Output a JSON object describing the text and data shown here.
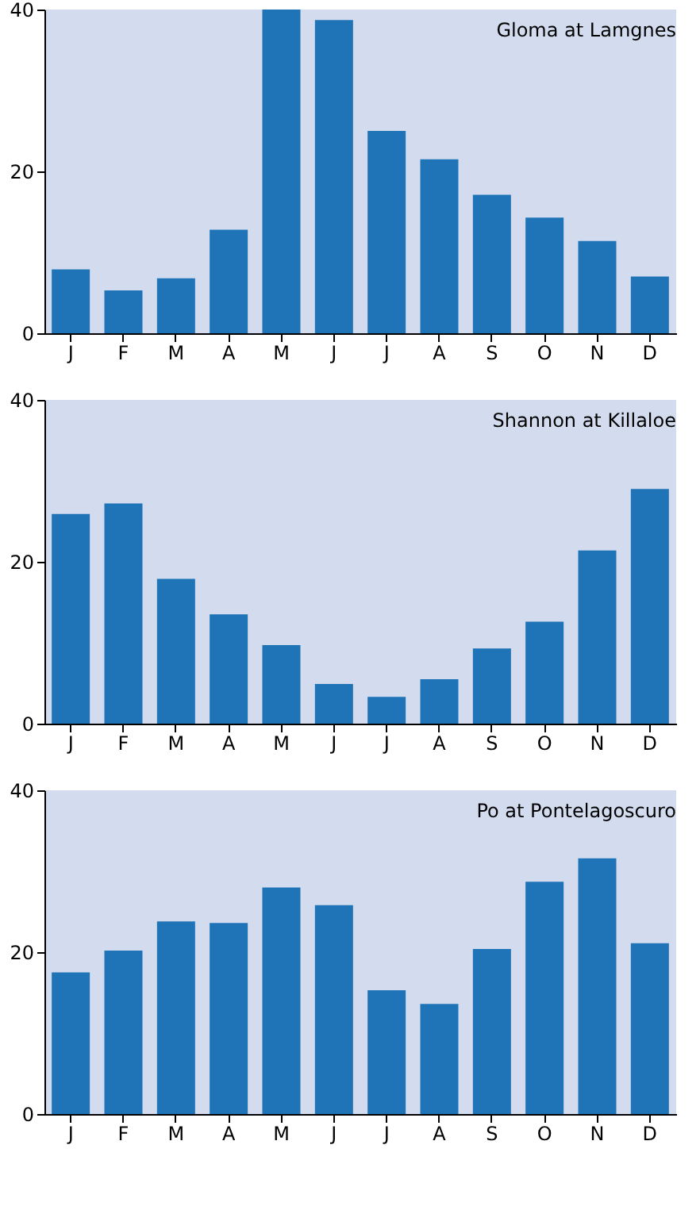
{
  "chart_data": [
    {
      "type": "bar",
      "title": "Gloma at Lamgnes",
      "categories": [
        "J",
        "F",
        "M",
        "A",
        "M",
        "J",
        "J",
        "A",
        "S",
        "O",
        "N",
        "D"
      ],
      "values": [
        7.9,
        5.3,
        6.8,
        12.8,
        40,
        38.7,
        25,
        21.5,
        17.1,
        14.3,
        11.4,
        7
      ],
      "color": "#1f73b7",
      "ylim": [
        0,
        40
      ],
      "yticks": [
        0,
        20,
        40
      ],
      "grid": false
    },
    {
      "type": "bar",
      "title": "Shannon at Killaloe",
      "categories": [
        "J",
        "F",
        "M",
        "A",
        "M",
        "J",
        "J",
        "A",
        "S",
        "O",
        "N",
        "D"
      ],
      "values": [
        25.9,
        27.2,
        17.9,
        13.5,
        9.7,
        4.9,
        3.3,
        5.5,
        9.3,
        12.6,
        21.4,
        29
      ],
      "color": "#1f73b7",
      "ylim": [
        0,
        40
      ],
      "yticks": [
        0,
        20,
        40
      ],
      "grid": false
    },
    {
      "type": "bar",
      "title": "Po at Pontelagoscuro",
      "categories": [
        "J",
        "F",
        "M",
        "A",
        "M",
        "J",
        "J",
        "A",
        "S",
        "O",
        "N",
        "D"
      ],
      "values": [
        17.5,
        20.2,
        23.8,
        23.6,
        28,
        25.8,
        15.3,
        13.6,
        20.4,
        28.7,
        31.6,
        21.1
      ],
      "color": "#1f73b7",
      "ylim": [
        0,
        40
      ],
      "yticks": [
        0,
        20,
        40
      ],
      "grid": false
    }
  ]
}
